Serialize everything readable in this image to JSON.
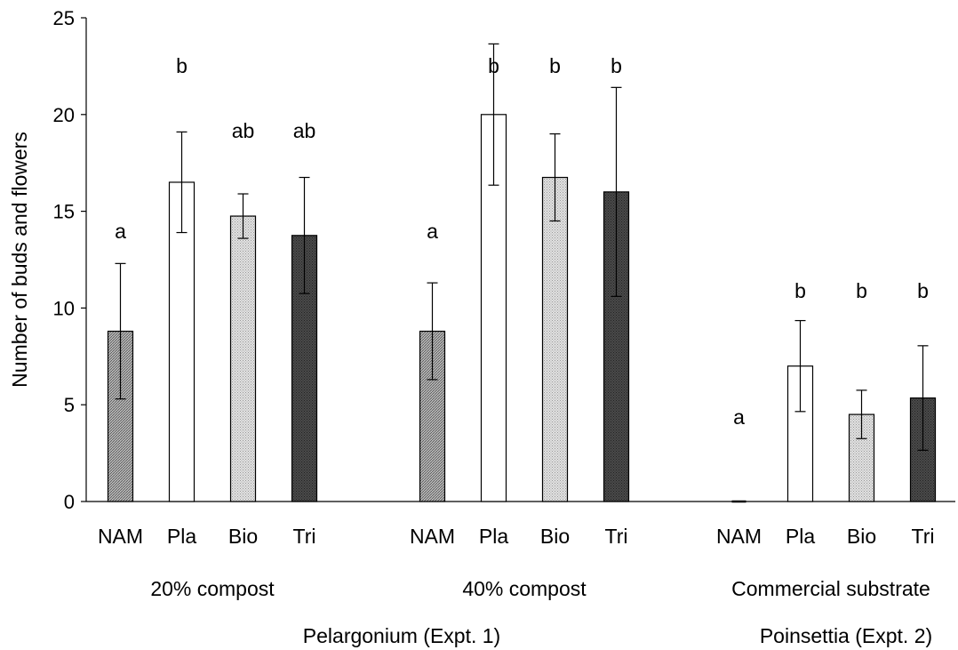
{
  "chart_data": {
    "type": "bar",
    "ylabel": "Number of buds and flowers",
    "ylim": [
      0,
      25
    ],
    "yticks": [
      0,
      5,
      10,
      15,
      20,
      25
    ],
    "grid": false,
    "treatments": [
      "NAM",
      "Pla",
      "Bio",
      "Tri"
    ],
    "treatment_colors": {
      "NAM": "#9a9a9a",
      "Pla": "#ffffff",
      "Bio": "#d2d2d2",
      "Tri": "#4a4a4a"
    },
    "groups": [
      {
        "label": "20% compost",
        "bars": [
          {
            "treatment": "NAM",
            "value": 8.8,
            "error": 3.5,
            "letter": "a"
          },
          {
            "treatment": "Pla",
            "value": 16.5,
            "error": 2.6,
            "letter": "b"
          },
          {
            "treatment": "Bio",
            "value": 14.75,
            "error": 1.15,
            "letter": "ab"
          },
          {
            "treatment": "Tri",
            "value": 13.75,
            "error": 3.0,
            "letter": "ab"
          }
        ]
      },
      {
        "label": "40% compost",
        "bars": [
          {
            "treatment": "NAM",
            "value": 8.8,
            "error": 2.5,
            "letter": "a"
          },
          {
            "treatment": "Pla",
            "value": 20.0,
            "error": 3.65,
            "letter": "b"
          },
          {
            "treatment": "Bio",
            "value": 16.75,
            "error": 2.25,
            "letter": "b"
          },
          {
            "treatment": "Tri",
            "value": 16.0,
            "error": 5.4,
            "letter": "b"
          }
        ]
      },
      {
        "label": "Commercial substrate",
        "bars": [
          {
            "treatment": "NAM",
            "value": 0,
            "error": 0,
            "letter": "a"
          },
          {
            "treatment": "Pla",
            "value": 7.0,
            "error": 2.35,
            "letter": "b"
          },
          {
            "treatment": "Bio",
            "value": 4.5,
            "error": 1.25,
            "letter": "b"
          },
          {
            "treatment": "Tri",
            "value": 5.35,
            "error": 2.7,
            "letter": "b"
          }
        ]
      }
    ],
    "experiments": [
      {
        "label": "Pelargonium (Expt. 1)",
        "groups": [
          0,
          1
        ]
      },
      {
        "label": "Poinsettia (Expt. 2)",
        "groups": [
          2
        ]
      }
    ]
  }
}
